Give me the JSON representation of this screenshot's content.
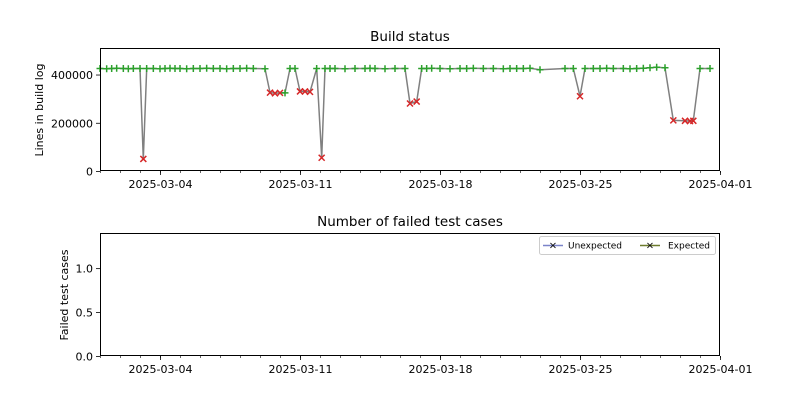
{
  "chart_data": [
    {
      "type": "line",
      "title": "Build status",
      "xlabel": "",
      "ylabel": "Lines in build log",
      "x_range": [
        "2025-03-01",
        "2025-04-01"
      ],
      "ylim": [
        0,
        510000
      ],
      "x_tick_labels": [
        "2025-03-04",
        "2025-03-11",
        "2025-03-18",
        "2025-03-25",
        "2025-04-01"
      ],
      "y_tick_labels": [
        "0",
        "200000",
        "400000"
      ],
      "y_ticks": [
        0,
        200000,
        400000
      ],
      "grid": false,
      "series": [
        {
          "status_colors": {
            "pass": "#2ca02c",
            "fail": "#d62728",
            "line": "#808080"
          },
          "points": [
            [
              "2025-03-01T00:00",
              425000,
              "pass"
            ],
            [
              "2025-03-01T08:00",
              424000,
              "pass"
            ],
            [
              "2025-03-01T14:00",
              425000,
              "pass"
            ],
            [
              "2025-03-01T20:00",
              426000,
              "pass"
            ],
            [
              "2025-03-02T04:00",
              425000,
              "pass"
            ],
            [
              "2025-03-02T10:00",
              424000,
              "pass"
            ],
            [
              "2025-03-02T16:00",
              425000,
              "pass"
            ],
            [
              "2025-03-03T00:00",
              425000,
              "pass"
            ],
            [
              "2025-03-03T04:00",
              50000,
              "fail"
            ],
            [
              "2025-03-03T08:00",
              425000,
              "pass"
            ],
            [
              "2025-03-03T16:00",
              425000,
              "pass"
            ],
            [
              "2025-03-04T00:00",
              424000,
              "pass"
            ],
            [
              "2025-03-04T06:00",
              425000,
              "pass"
            ],
            [
              "2025-03-04T12:00",
              426000,
              "pass"
            ],
            [
              "2025-03-04T18:00",
              425000,
              "pass"
            ],
            [
              "2025-03-05T00:00",
              425000,
              "pass"
            ],
            [
              "2025-03-05T08:00",
              424000,
              "pass"
            ],
            [
              "2025-03-05T16:00",
              425000,
              "pass"
            ],
            [
              "2025-03-06T00:00",
              425000,
              "pass"
            ],
            [
              "2025-03-06T08:00",
              426000,
              "pass"
            ],
            [
              "2025-03-06T16:00",
              425000,
              "pass"
            ],
            [
              "2025-03-07T00:00",
              425000,
              "pass"
            ],
            [
              "2025-03-07T08:00",
              424000,
              "pass"
            ],
            [
              "2025-03-07T16:00",
              425000,
              "pass"
            ],
            [
              "2025-03-08T00:00",
              425000,
              "pass"
            ],
            [
              "2025-03-08T08:00",
              426000,
              "pass"
            ],
            [
              "2025-03-08T16:00",
              425000,
              "pass"
            ],
            [
              "2025-03-09T06:00",
              424000,
              "pass"
            ],
            [
              "2025-03-09T12:00",
              325000,
              "fail"
            ],
            [
              "2025-03-09T18:00",
              322000,
              "fail"
            ],
            [
              "2025-03-10T00:00",
              324000,
              "fail"
            ],
            [
              "2025-03-10T06:00",
              324000,
              "pass"
            ],
            [
              "2025-03-10T12:00",
              425000,
              "pass"
            ],
            [
              "2025-03-10T18:00",
              425000,
              "pass"
            ],
            [
              "2025-03-11T00:00",
              330000,
              "fail"
            ],
            [
              "2025-03-11T06:00",
              330000,
              "fail"
            ],
            [
              "2025-03-11T12:00",
              328000,
              "fail"
            ],
            [
              "2025-03-11T20:00",
              425000,
              "pass"
            ],
            [
              "2025-03-12T02:00",
              55000,
              "fail"
            ],
            [
              "2025-03-12T06:00",
              425000,
              "pass"
            ],
            [
              "2025-03-12T12:00",
              425000,
              "pass"
            ],
            [
              "2025-03-12T18:00",
              425000,
              "pass"
            ],
            [
              "2025-03-13T06:00",
              424000,
              "pass"
            ],
            [
              "2025-03-13T18:00",
              425000,
              "pass"
            ],
            [
              "2025-03-14T06:00",
              425000,
              "pass"
            ],
            [
              "2025-03-14T12:00",
              426000,
              "pass"
            ],
            [
              "2025-03-14T18:00",
              425000,
              "pass"
            ],
            [
              "2025-03-15T06:00",
              424000,
              "pass"
            ],
            [
              "2025-03-15T18:00",
              425000,
              "pass"
            ],
            [
              "2025-03-16T06:00",
              425000,
              "pass"
            ],
            [
              "2025-03-16T12:00",
              280000,
              "fail"
            ],
            [
              "2025-03-16T20:00",
              288000,
              "fail"
            ],
            [
              "2025-03-17T02:00",
              425000,
              "pass"
            ],
            [
              "2025-03-17T08:00",
              425000,
              "pass"
            ],
            [
              "2025-03-17T14:00",
              426000,
              "pass"
            ],
            [
              "2025-03-18T00:00",
              425000,
              "pass"
            ],
            [
              "2025-03-18T12:00",
              424000,
              "pass"
            ],
            [
              "2025-03-19T00:00",
              425000,
              "pass"
            ],
            [
              "2025-03-19T08:00",
              425000,
              "pass"
            ],
            [
              "2025-03-19T16:00",
              426000,
              "pass"
            ],
            [
              "2025-03-20T04:00",
              425000,
              "pass"
            ],
            [
              "2025-03-20T16:00",
              425000,
              "pass"
            ],
            [
              "2025-03-21T04:00",
              424000,
              "pass"
            ],
            [
              "2025-03-21T12:00",
              425000,
              "pass"
            ],
            [
              "2025-03-21T20:00",
              425000,
              "pass"
            ],
            [
              "2025-03-22T04:00",
              425000,
              "pass"
            ],
            [
              "2025-03-22T12:00",
              426000,
              "pass"
            ],
            [
              "2025-03-23T00:00",
              420000,
              "pass"
            ],
            [
              "2025-03-24T06:00",
              425000,
              "pass"
            ],
            [
              "2025-03-24T16:00",
              425000,
              "pass"
            ],
            [
              "2025-03-25T00:00",
              310000,
              "fail"
            ],
            [
              "2025-03-25T06:00",
              425000,
              "pass"
            ],
            [
              "2025-03-25T16:00",
              425000,
              "pass"
            ],
            [
              "2025-03-26T00:00",
              425000,
              "pass"
            ],
            [
              "2025-03-26T08:00",
              426000,
              "pass"
            ],
            [
              "2025-03-26T16:00",
              425000,
              "pass"
            ],
            [
              "2025-03-27T04:00",
              425000,
              "pass"
            ],
            [
              "2025-03-27T12:00",
              424000,
              "pass"
            ],
            [
              "2025-03-27T20:00",
              425000,
              "pass"
            ],
            [
              "2025-03-28T04:00",
              426000,
              "pass"
            ],
            [
              "2025-03-28T12:00",
              428000,
              "pass"
            ],
            [
              "2025-03-28T20:00",
              430000,
              "pass"
            ],
            [
              "2025-03-29T06:00",
              428000,
              "pass"
            ],
            [
              "2025-03-29T16:00",
              210000,
              "fail"
            ],
            [
              "2025-03-30T06:00",
              208000,
              "fail"
            ],
            [
              "2025-03-30T12:00",
              207000,
              "fail"
            ],
            [
              "2025-03-30T16:00",
              208000,
              "fail"
            ],
            [
              "2025-03-31T00:00",
              425000,
              "pass"
            ],
            [
              "2025-03-31T12:00",
              425000,
              "pass"
            ]
          ]
        }
      ]
    },
    {
      "type": "line",
      "title": "Number of failed test cases",
      "xlabel": "",
      "ylabel": "Failed test cases",
      "x_range": [
        "2025-03-01",
        "2025-04-01"
      ],
      "ylim": [
        0,
        1.4
      ],
      "x_tick_labels": [
        "2025-03-04",
        "2025-03-11",
        "2025-03-18",
        "2025-03-25",
        "2025-04-01"
      ],
      "y_tick_labels": [
        "0.0",
        "0.5",
        "1.0"
      ],
      "y_ticks": [
        0,
        0.5,
        1.0
      ],
      "grid": false,
      "legend_position": "top-right",
      "series": [
        {
          "name": "Unexpected",
          "color": "#7b84c9",
          "values": []
        },
        {
          "name": "Expected",
          "color": "#6e7c2e",
          "values": []
        }
      ]
    }
  ]
}
